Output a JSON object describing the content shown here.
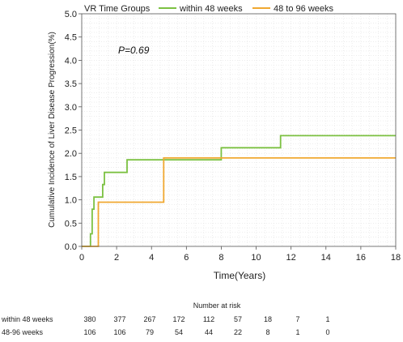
{
  "chart_data": {
    "type": "line",
    "step": true,
    "title": "VR Time Groups",
    "xlabel": "Time(Years)",
    "ylabel": "Cumulative Incidence of Liver Disease Progression(%)",
    "xlim": [
      0,
      18
    ],
    "ylim": [
      0,
      5.0
    ],
    "x_ticks": [
      0,
      2,
      4,
      6,
      8,
      10,
      12,
      14,
      16,
      18
    ],
    "y_ticks": [
      0,
      0.5,
      1.0,
      1.5,
      2.0,
      2.5,
      3.0,
      3.5,
      4.0,
      4.5,
      5.0
    ],
    "y_tick_labels": [
      "0.0",
      "0.5",
      "1.0",
      "1.5",
      "2.0",
      "2.5",
      "3.0",
      "3.5",
      "4.0",
      "4.5",
      "5.0"
    ],
    "grid": true,
    "legend_position": "top",
    "annotation": "P=0.69",
    "series": [
      {
        "name": "within 48 weeks",
        "color": "#7cc142",
        "points": [
          [
            0,
            0
          ],
          [
            0.5,
            0
          ],
          [
            0.5,
            0.27
          ],
          [
            0.6,
            0.27
          ],
          [
            0.6,
            0.8
          ],
          [
            0.7,
            0.8
          ],
          [
            0.7,
            1.06
          ],
          [
            1.2,
            1.06
          ],
          [
            1.2,
            1.33
          ],
          [
            1.3,
            1.33
          ],
          [
            1.3,
            1.59
          ],
          [
            2.6,
            1.59
          ],
          [
            2.6,
            1.86
          ],
          [
            8.0,
            1.86
          ],
          [
            8.0,
            2.12
          ],
          [
            11.4,
            2.12
          ],
          [
            11.4,
            2.38
          ],
          [
            18,
            2.38
          ]
        ]
      },
      {
        "name": "48 to 96 weeks",
        "color": "#f0a830",
        "points": [
          [
            0,
            0
          ],
          [
            0.95,
            0
          ],
          [
            0.95,
            0.95
          ],
          [
            4.7,
            0.95
          ],
          [
            4.7,
            1.9
          ],
          [
            18,
            1.9
          ]
        ]
      }
    ],
    "risk_table": {
      "title": "Number at risk",
      "rows": [
        {
          "label": "within 48 weeks",
          "values": [
            "380",
            "377",
            "267",
            "172",
            "112",
            "57",
            "18",
            "7",
            "1"
          ]
        },
        {
          "label": "48-96 weeks",
          "values": [
            "106",
            "106",
            "79",
            "54",
            "44",
            "22",
            "8",
            "1",
            "0"
          ]
        }
      ]
    }
  }
}
